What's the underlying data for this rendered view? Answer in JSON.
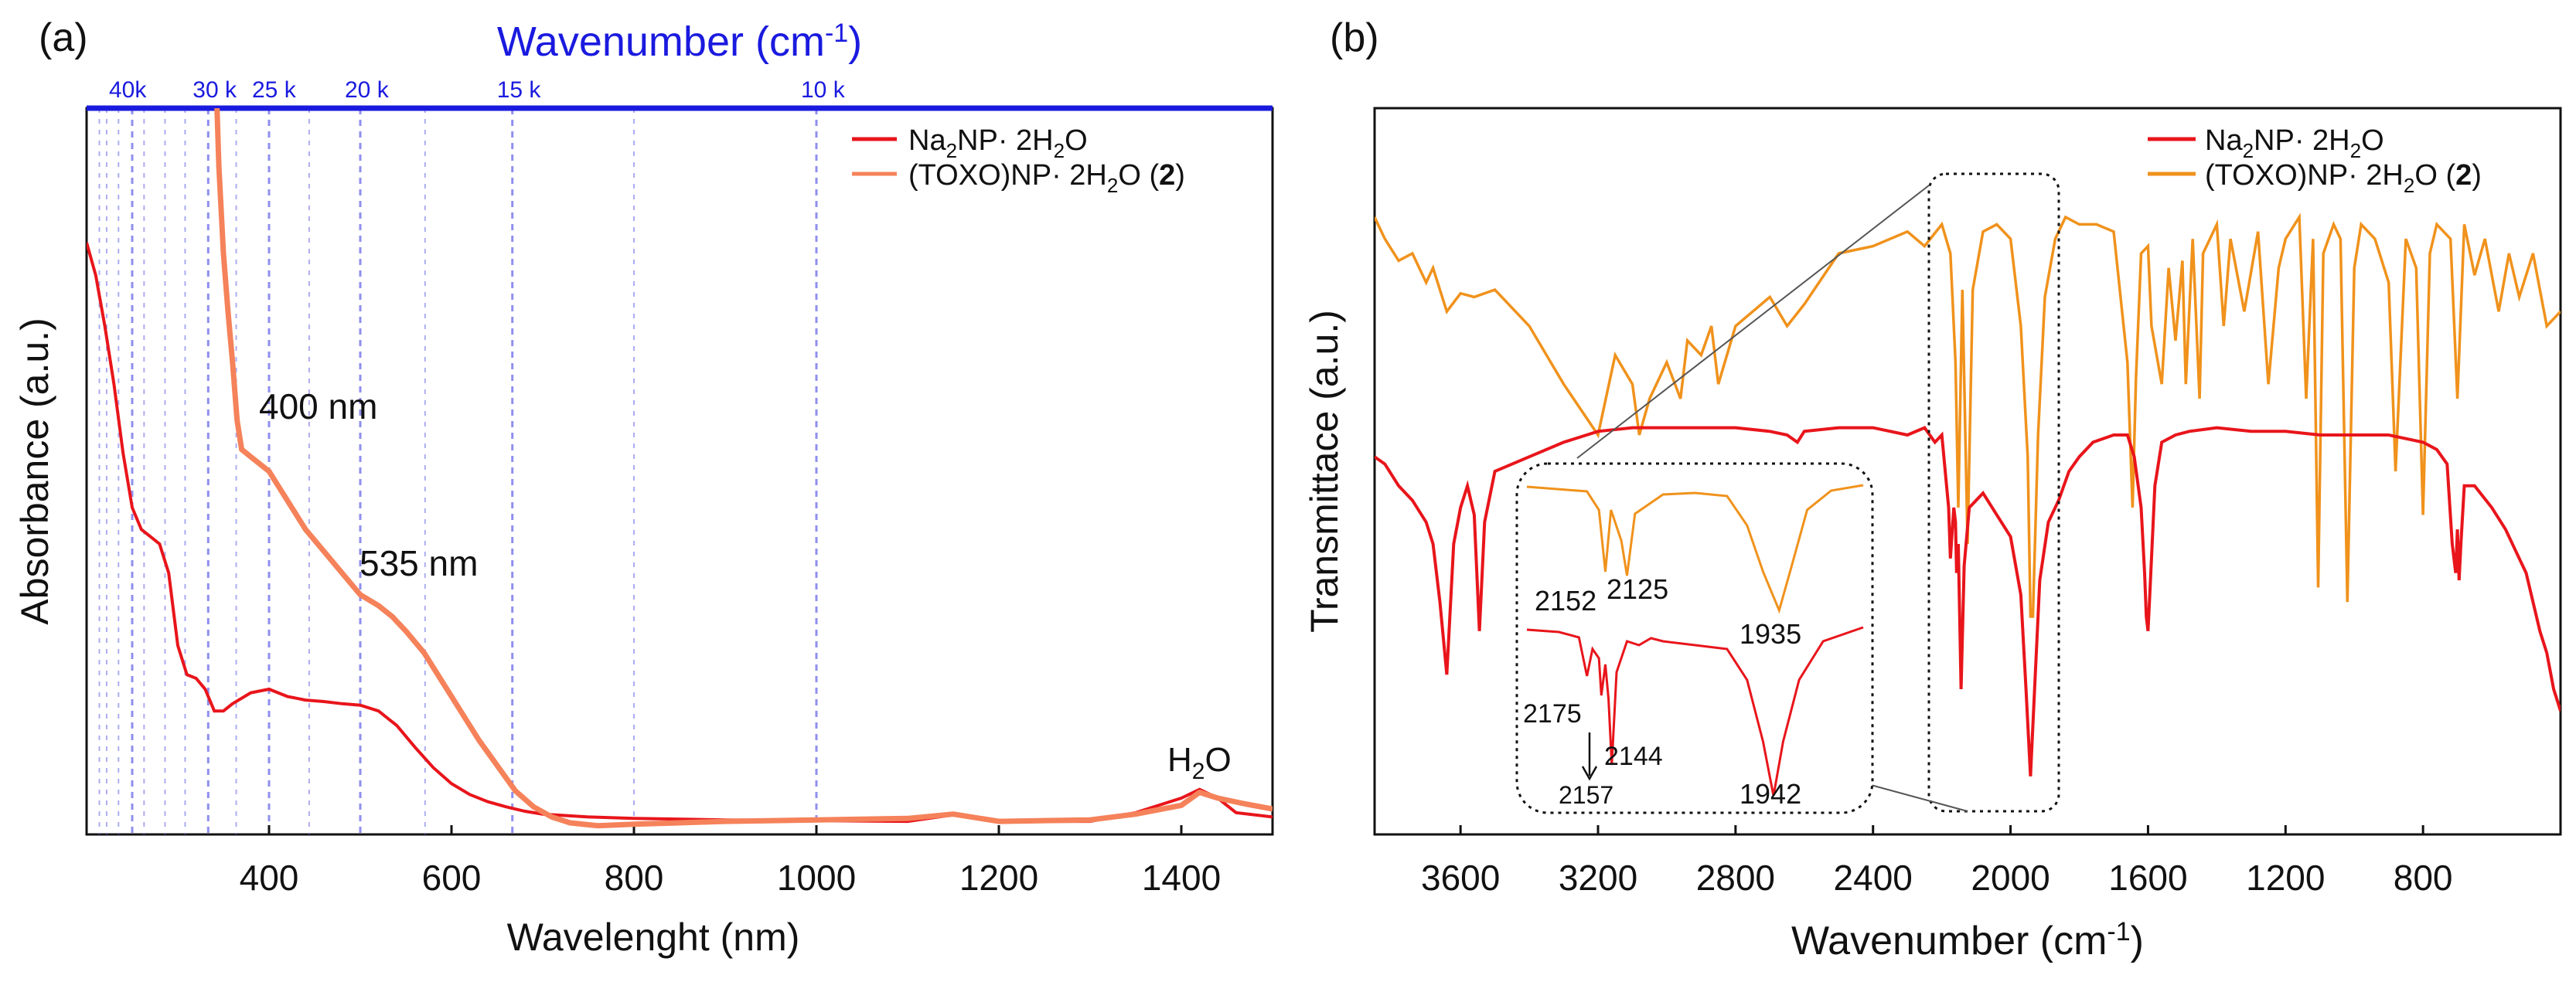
{
  "panels": {
    "a": {
      "label": "(a)"
    },
    "b": {
      "label": "(b)"
    }
  },
  "colors": {
    "na_red": "#e8151b",
    "toxo_a": "#f5825a",
    "toxo_b": "#f0921c",
    "blue_axis": "#1a1adf",
    "grid_blue": "#6a6ae8",
    "black": "#111111"
  },
  "chart_data": [
    {
      "id": "uv-vis",
      "type": "line",
      "title": "",
      "xlabel": "Wavelenght (nm)",
      "ylabel": "Absorbance (a.u.)",
      "xlim": [
        200,
        1500
      ],
      "ylim": [
        0,
        1
      ],
      "x_ticks": [
        "400",
        "600",
        "800",
        "1000",
        "1200",
        "1400"
      ],
      "top_axis": {
        "label_text": "Wavenumber (cm",
        "label_sup": "-1",
        "label_end": ")",
        "ticks": [
          "40k",
          "30 k",
          "25 k",
          "20 k",
          "15 k",
          "10 k"
        ],
        "tick_wavelengths_nm": [
          250,
          333.3,
          400,
          500,
          666.7,
          1000
        ],
        "minor_gridlines_nm": [
          214,
          222,
          235,
          263,
          286,
          308,
          364,
          444,
          571,
          800
        ]
      },
      "legend": [
        {
          "text": "Na",
          "sub": "2",
          "text2": "NP· 2H",
          "sub2": "2",
          "text3": "O",
          "bold": ""
        },
        {
          "text": "(TOXO)NP· 2H",
          "sub": "2",
          "text2": "O (",
          "bold": "2",
          "text3": ")"
        }
      ],
      "annotations": [
        {
          "pre": "400 nm",
          "sub": "",
          "post": ""
        },
        {
          "pre": "535 nm",
          "sub": "",
          "post": ""
        },
        {
          "pre": "H",
          "sub": "2",
          "post": "O"
        }
      ],
      "series": [
        {
          "name": "Na2NP· 2H2O",
          "x": [
            200,
            210,
            220,
            230,
            240,
            250,
            260,
            270,
            280,
            290,
            300,
            310,
            320,
            330,
            340,
            350,
            360,
            380,
            400,
            420,
            440,
            460,
            480,
            500,
            520,
            540,
            560,
            580,
            600,
            620,
            640,
            660,
            680,
            700,
            750,
            800,
            900,
            1000,
            1100,
            1150,
            1200,
            1300,
            1350,
            1400,
            1420,
            1440,
            1460,
            1500
          ],
          "y": [
            0.815,
            0.77,
            0.7,
            0.62,
            0.525,
            0.45,
            0.42,
            0.41,
            0.4,
            0.36,
            0.26,
            0.22,
            0.215,
            0.2,
            0.17,
            0.17,
            0.18,
            0.195,
            0.2,
            0.19,
            0.185,
            0.183,
            0.18,
            0.178,
            0.17,
            0.15,
            0.12,
            0.092,
            0.07,
            0.055,
            0.045,
            0.038,
            0.032,
            0.028,
            0.024,
            0.022,
            0.02,
            0.019,
            0.018,
            0.027,
            0.018,
            0.018,
            0.03,
            0.05,
            0.062,
            0.05,
            0.03,
            0.024
          ]
        },
        {
          "name": "(TOXO)NP· 2H2O (2)",
          "x": [
            343,
            345,
            350,
            355,
            360,
            365,
            370,
            380,
            390,
            400,
            410,
            420,
            440,
            460,
            480,
            500,
            520,
            535,
            550,
            570,
            590,
            610,
            630,
            650,
            670,
            690,
            710,
            730,
            760,
            800,
            900,
            1000,
            1100,
            1150,
            1200,
            1300,
            1350,
            1400,
            1420,
            1440,
            1470,
            1500
          ],
          "y": [
            1.0,
            0.92,
            0.8,
            0.72,
            0.65,
            0.57,
            0.53,
            0.52,
            0.51,
            0.5,
            0.48,
            0.46,
            0.42,
            0.39,
            0.36,
            0.33,
            0.315,
            0.3,
            0.28,
            0.25,
            0.21,
            0.17,
            0.13,
            0.095,
            0.06,
            0.038,
            0.024,
            0.016,
            0.012,
            0.014,
            0.018,
            0.02,
            0.022,
            0.028,
            0.018,
            0.02,
            0.028,
            0.04,
            0.058,
            0.05,
            0.042,
            0.035
          ]
        }
      ]
    },
    {
      "id": "ftir",
      "type": "line",
      "title": "",
      "xlabel_pre": "Wavenumber (cm",
      "xlabel_sup": "-1",
      "xlabel_post": ")",
      "ylabel": "Transmittace (a.u.)",
      "xlim": [
        3850,
        400
      ],
      "ylim": [
        0,
        1
      ],
      "x_ticks": [
        "3600",
        "3200",
        "2800",
        "2400",
        "2000",
        "1600",
        "1200",
        "800"
      ],
      "legend": [
        {
          "text": "Na",
          "sub": "2",
          "text2": "NP· 2H",
          "sub2": "2",
          "text3": "O",
          "bold": ""
        },
        {
          "text": "(TOXO)NP· 2H",
          "sub": "2",
          "text2": "O (",
          "bold": "2",
          "text3": ")"
        }
      ],
      "series": [
        {
          "name": "(TOXO)NP· 2H2O (2)",
          "x": [
            3850,
            3820,
            3780,
            3740,
            3700,
            3680,
            3640,
            3600,
            3560,
            3500,
            3400,
            3300,
            3200,
            3150,
            3100,
            3080,
            3050,
            3000,
            2960,
            2940,
            2900,
            2870,
            2850,
            2800,
            2750,
            2700,
            2650,
            2600,
            2500,
            2400,
            2300,
            2250,
            2200,
            2175,
            2160,
            2152,
            2140,
            2125,
            2110,
            2080,
            2040,
            2000,
            1970,
            1950,
            1942,
            1935,
            1920,
            1900,
            1870,
            1840,
            1800,
            1750,
            1700,
            1660,
            1645,
            1635,
            1620,
            1600,
            1590,
            1560,
            1540,
            1520,
            1500,
            1490,
            1470,
            1450,
            1440,
            1420,
            1400,
            1380,
            1360,
            1320,
            1280,
            1250,
            1220,
            1200,
            1160,
            1140,
            1120,
            1105,
            1090,
            1060,
            1040,
            1020,
            1000,
            980,
            940,
            900,
            880,
            850,
            820,
            800,
            780,
            760,
            720,
            700,
            680,
            650,
            620,
            580,
            550,
            520,
            480,
            440,
            400
          ],
          "y": [
            0.85,
            0.82,
            0.79,
            0.8,
            0.76,
            0.78,
            0.72,
            0.745,
            0.74,
            0.75,
            0.7,
            0.62,
            0.55,
            0.66,
            0.62,
            0.55,
            0.6,
            0.65,
            0.6,
            0.68,
            0.66,
            0.7,
            0.62,
            0.7,
            0.72,
            0.74,
            0.7,
            0.73,
            0.8,
            0.81,
            0.83,
            0.81,
            0.84,
            0.8,
            0.65,
            0.45,
            0.75,
            0.4,
            0.75,
            0.83,
            0.84,
            0.82,
            0.7,
            0.52,
            0.3,
            0.3,
            0.55,
            0.74,
            0.82,
            0.85,
            0.84,
            0.84,
            0.83,
            0.65,
            0.45,
            0.63,
            0.8,
            0.81,
            0.7,
            0.62,
            0.78,
            0.68,
            0.79,
            0.62,
            0.82,
            0.6,
            0.8,
            0.82,
            0.84,
            0.7,
            0.82,
            0.72,
            0.83,
            0.62,
            0.78,
            0.82,
            0.85,
            0.6,
            0.82,
            0.34,
            0.8,
            0.84,
            0.82,
            0.32,
            0.78,
            0.84,
            0.82,
            0.76,
            0.5,
            0.82,
            0.78,
            0.44,
            0.8,
            0.84,
            0.82,
            0.6,
            0.84,
            0.77,
            0.82,
            0.72,
            0.8,
            0.74,
            0.8,
            0.7,
            0.72
          ]
        },
        {
          "name": "Na2NP· 2H2O",
          "x": [
            3850,
            3820,
            3780,
            3740,
            3700,
            3680,
            3660,
            3640,
            3620,
            3600,
            3580,
            3560,
            3545,
            3530,
            3500,
            3400,
            3300,
            3200,
            3100,
            3000,
            2900,
            2800,
            2700,
            2650,
            2620,
            2600,
            2500,
            2400,
            2300,
            2250,
            2220,
            2200,
            2180,
            2175,
            2165,
            2160,
            2157,
            2152,
            2148,
            2144,
            2135,
            2120,
            2080,
            2040,
            2000,
            1970,
            1955,
            1942,
            1930,
            1915,
            1890,
            1860,
            1830,
            1800,
            1760,
            1700,
            1660,
            1640,
            1620,
            1610,
            1605,
            1600,
            1595,
            1580,
            1560,
            1520,
            1480,
            1400,
            1300,
            1200,
            1100,
            1000,
            900,
            850,
            800,
            760,
            730,
            715,
            705,
            700,
            695,
            690,
            680,
            650,
            600,
            560,
            520,
            500,
            480,
            460,
            440,
            420,
            400
          ],
          "y": [
            0.52,
            0.51,
            0.48,
            0.46,
            0.43,
            0.4,
            0.32,
            0.22,
            0.4,
            0.45,
            0.48,
            0.44,
            0.28,
            0.43,
            0.5,
            0.52,
            0.54,
            0.555,
            0.56,
            0.56,
            0.56,
            0.56,
            0.555,
            0.55,
            0.54,
            0.555,
            0.56,
            0.56,
            0.55,
            0.56,
            0.54,
            0.55,
            0.45,
            0.38,
            0.45,
            0.43,
            0.36,
            0.4,
            0.3,
            0.2,
            0.37,
            0.45,
            0.47,
            0.44,
            0.41,
            0.33,
            0.2,
            0.08,
            0.2,
            0.35,
            0.43,
            0.46,
            0.5,
            0.52,
            0.54,
            0.55,
            0.55,
            0.52,
            0.45,
            0.36,
            0.3,
            0.28,
            0.33,
            0.48,
            0.54,
            0.55,
            0.555,
            0.56,
            0.555,
            0.555,
            0.55,
            0.55,
            0.55,
            0.545,
            0.54,
            0.53,
            0.51,
            0.4,
            0.36,
            0.42,
            0.35,
            0.4,
            0.48,
            0.48,
            0.45,
            0.42,
            0.38,
            0.36,
            0.32,
            0.28,
            0.25,
            0.2,
            0.17
          ]
        }
      ],
      "inset": {
        "labels": [
          "2152",
          "2125",
          "1935",
          "2175",
          "2144",
          "2157",
          "1942"
        ]
      }
    }
  ]
}
